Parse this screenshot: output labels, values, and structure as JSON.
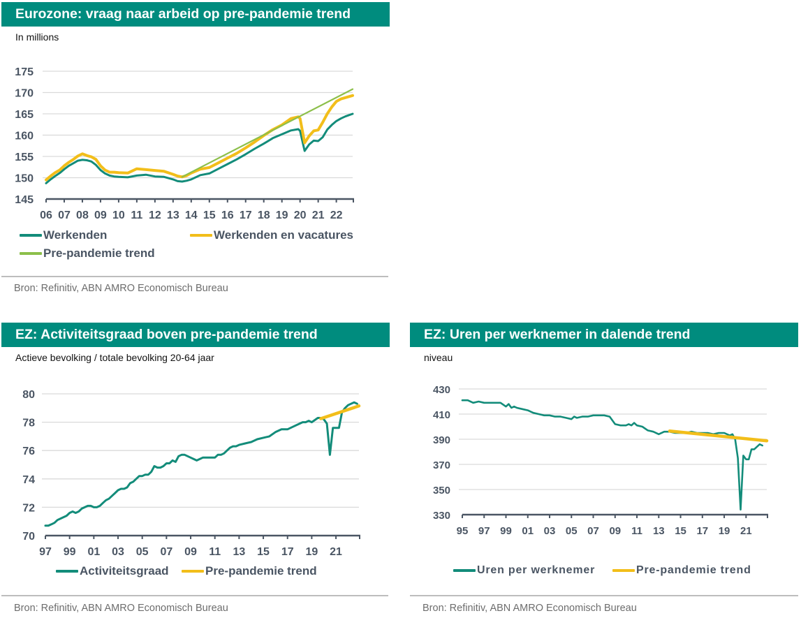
{
  "colors": {
    "header_bg": "#008c7e",
    "teal": "#138c7a",
    "gold": "#f2be1a",
    "green": "#8cbf4a",
    "axis": "#4a5563",
    "grid": "#d9d9d9"
  },
  "panels": [
    {
      "title": "Eurozone: vraag naar arbeid op pre-pandemie trend",
      "subtitle": "In millions",
      "source": "Bron: Refinitiv, ABN AMRO Economisch Bureau"
    },
    {
      "title": "EZ: Activiteitsgraad boven pre-pandemie trend",
      "subtitle": "Actieve bevolking / totale bevolking 20-64 jaar",
      "source": "Bron: Refinitiv, ABN AMRO Economisch Bureau"
    },
    {
      "title": "EZ: Uren per werknemer in dalende trend",
      "subtitle": "niveau",
      "source": "Bron: Refinitiv, ABN AMRO Economisch Bureau"
    }
  ],
  "chart_data": [
    {
      "type": "line",
      "title": "Eurozone: vraag naar arbeid op pre-pandemie trend",
      "subtitle": "In millions",
      "xlabel": "",
      "ylabel": "In millions",
      "xlim": [
        2006,
        2022.9
      ],
      "ylim": [
        145,
        175
      ],
      "yticks": [
        145,
        150,
        155,
        160,
        165,
        170,
        175
      ],
      "xticks": [
        2006,
        2007,
        2008,
        2009,
        2010,
        2011,
        2012,
        2013,
        2014,
        2015,
        2016,
        2017,
        2018,
        2019,
        2020,
        2021,
        2022
      ],
      "xtick_labels": [
        "06",
        "07",
        "08",
        "09",
        "10",
        "11",
        "12",
        "13",
        "14",
        "15",
        "16",
        "17",
        "18",
        "19",
        "20",
        "21",
        "22"
      ],
      "grid": true,
      "legend_position": "bottom",
      "series": [
        {
          "name": "Werkenden",
          "color": "#138c7a",
          "x": [
            2006.0,
            2006.25,
            2006.5,
            2006.75,
            2007.0,
            2007.25,
            2007.5,
            2007.75,
            2008.0,
            2008.25,
            2008.5,
            2008.75,
            2009.0,
            2009.25,
            2009.5,
            2009.75,
            2010.0,
            2010.5,
            2011.0,
            2011.5,
            2012.0,
            2012.5,
            2013.0,
            2013.25,
            2013.5,
            2013.75,
            2014.0,
            2014.5,
            2015.0,
            2015.5,
            2016.0,
            2016.5,
            2017.0,
            2017.5,
            2018.0,
            2018.5,
            2019.0,
            2019.5,
            2019.9,
            2020.0,
            2020.25,
            2020.5,
            2020.75,
            2021.0,
            2021.25,
            2021.5,
            2021.75,
            2022.0,
            2022.25,
            2022.5,
            2022.9
          ],
          "y": [
            148.7,
            149.6,
            150.4,
            151.1,
            152.0,
            152.8,
            153.4,
            154.0,
            154.2,
            154.1,
            153.8,
            153.0,
            151.8,
            151.0,
            150.5,
            150.3,
            150.2,
            150.1,
            150.5,
            150.7,
            150.3,
            150.2,
            149.6,
            149.2,
            149.1,
            149.3,
            149.6,
            150.6,
            151.0,
            152.1,
            153.2,
            154.3,
            155.5,
            156.8,
            158.0,
            159.3,
            160.2,
            161.1,
            161.4,
            161.0,
            156.3,
            157.8,
            158.7,
            158.6,
            159.5,
            161.3,
            162.4,
            163.3,
            163.9,
            164.4,
            165.0
          ]
        },
        {
          "name": "Werkenden en vacatures",
          "color": "#f2be1a",
          "x": [
            2006.0,
            2006.25,
            2006.5,
            2006.75,
            2007.0,
            2007.25,
            2007.5,
            2007.75,
            2008.0,
            2008.25,
            2008.5,
            2008.75,
            2009.0,
            2009.25,
            2009.5,
            2009.75,
            2010.0,
            2010.5,
            2011.0,
            2011.5,
            2012.0,
            2012.5,
            2013.0,
            2013.25,
            2013.5,
            2013.75,
            2014.0,
            2014.5,
            2015.0,
            2015.5,
            2016.0,
            2016.5,
            2017.0,
            2017.5,
            2018.0,
            2018.5,
            2019.0,
            2019.5,
            2019.9,
            2020.0,
            2020.25,
            2020.5,
            2020.75,
            2021.0,
            2021.25,
            2021.5,
            2021.75,
            2022.0,
            2022.25,
            2022.5,
            2022.9
          ],
          "y": [
            149.5,
            150.4,
            151.2,
            151.8,
            152.8,
            153.6,
            154.3,
            155.1,
            155.6,
            155.2,
            154.9,
            154.3,
            152.8,
            151.8,
            151.3,
            151.3,
            151.2,
            151.1,
            152.1,
            151.9,
            151.7,
            151.5,
            150.8,
            150.4,
            150.2,
            150.5,
            151.1,
            152.0,
            152.4,
            153.5,
            154.6,
            155.7,
            157.0,
            158.4,
            159.9,
            161.3,
            162.4,
            163.9,
            164.3,
            163.9,
            158.2,
            159.8,
            161.0,
            161.2,
            163.0,
            165.0,
            166.6,
            167.9,
            168.5,
            168.8,
            169.3
          ]
        },
        {
          "name": "Pre-pandemie trend",
          "color": "#8cbf4a",
          "x": [
            2013.5,
            2022.9
          ],
          "y": [
            150.2,
            170.8
          ]
        }
      ]
    },
    {
      "type": "line",
      "title": "EZ: Activiteitsgraad boven pre-pandemie trend",
      "subtitle": "Actieve bevolking / totale bevolking 20-64 jaar",
      "xlabel": "",
      "ylabel": "Actieve bevolking / totale bevolking 20-64 jaar",
      "xlim": [
        1997,
        2022.9
      ],
      "ylim": [
        70,
        80
      ],
      "yticks": [
        70,
        72,
        74,
        76,
        78,
        80
      ],
      "xticks": [
        1997,
        1999,
        2001,
        2003,
        2005,
        2007,
        2009,
        2011,
        2013,
        2015,
        2017,
        2019,
        2021
      ],
      "xtick_labels": [
        "97",
        "99",
        "01",
        "03",
        "05",
        "07",
        "09",
        "11",
        "13",
        "15",
        "17",
        "19",
        "21"
      ],
      "grid": true,
      "legend_position": "bottom",
      "series": [
        {
          "name": "Activiteitsgraad",
          "color": "#138c7a",
          "x": [
            1997.0,
            1997.25,
            1997.5,
            1997.75,
            1998.0,
            1998.25,
            1998.5,
            1998.75,
            1999.0,
            1999.25,
            1999.5,
            1999.75,
            2000.0,
            2000.25,
            2000.5,
            2000.75,
            2001.0,
            2001.25,
            2001.5,
            2001.75,
            2002.0,
            2002.25,
            2002.5,
            2002.75,
            2003.0,
            2003.25,
            2003.5,
            2003.75,
            2004.0,
            2004.25,
            2004.5,
            2004.75,
            2005.0,
            2005.25,
            2005.5,
            2005.75,
            2006.0,
            2006.25,
            2006.5,
            2006.75,
            2007.0,
            2007.25,
            2007.5,
            2007.75,
            2008.0,
            2008.25,
            2008.5,
            2008.75,
            2009.0,
            2009.25,
            2009.5,
            2009.75,
            2010.0,
            2010.5,
            2011.0,
            2011.25,
            2011.5,
            2011.75,
            2012.0,
            2012.25,
            2012.5,
            2012.75,
            2013.0,
            2013.5,
            2014.0,
            2014.5,
            2015.0,
            2015.5,
            2016.0,
            2016.5,
            2017.0,
            2017.5,
            2018.0,
            2018.25,
            2018.5,
            2018.75,
            2019.0,
            2019.5,
            2019.75,
            2020.0,
            2020.25,
            2020.5,
            2020.75,
            2021.0,
            2021.25,
            2021.5,
            2021.75,
            2022.0,
            2022.25,
            2022.5,
            2022.75
          ],
          "y": [
            70.7,
            70.7,
            70.8,
            70.9,
            71.1,
            71.2,
            71.3,
            71.4,
            71.6,
            71.7,
            71.6,
            71.7,
            71.9,
            72.0,
            72.1,
            72.1,
            72.0,
            72.0,
            72.1,
            72.3,
            72.5,
            72.6,
            72.8,
            73.0,
            73.2,
            73.3,
            73.3,
            73.4,
            73.7,
            73.8,
            74.0,
            74.2,
            74.2,
            74.3,
            74.3,
            74.5,
            74.9,
            74.8,
            74.8,
            74.9,
            75.1,
            75.1,
            75.3,
            75.2,
            75.6,
            75.7,
            75.7,
            75.6,
            75.5,
            75.4,
            75.3,
            75.4,
            75.5,
            75.5,
            75.5,
            75.7,
            75.7,
            75.8,
            76.0,
            76.2,
            76.3,
            76.3,
            76.4,
            76.5,
            76.6,
            76.8,
            76.9,
            77.0,
            77.3,
            77.5,
            77.5,
            77.7,
            77.9,
            78.0,
            78.0,
            78.1,
            78.0,
            78.3,
            78.3,
            78.2,
            77.9,
            75.7,
            77.6,
            77.6,
            77.6,
            78.7,
            79.0,
            79.2,
            79.3,
            79.4,
            79.3
          ]
        },
        {
          "name": "Pre-pandemie trend",
          "color": "#f2be1a",
          "x": [
            2019.75,
            2022.9
          ],
          "y": [
            78.25,
            79.15
          ]
        }
      ]
    },
    {
      "type": "line",
      "title": "EZ: Uren per werknemer in dalende trend",
      "subtitle": "niveau",
      "xlabel": "",
      "ylabel": "niveau",
      "xlim": [
        1995,
        2022.9
      ],
      "ylim": [
        330,
        430
      ],
      "yticks": [
        330,
        350,
        370,
        390,
        410,
        430
      ],
      "xticks": [
        1995,
        1997,
        1999,
        2001,
        2003,
        2005,
        2007,
        2009,
        2011,
        2013,
        2015,
        2017,
        2019,
        2021
      ],
      "xtick_labels": [
        "95",
        "97",
        "99",
        "01",
        "03",
        "05",
        "07",
        "09",
        "11",
        "13",
        "15",
        "17",
        "19",
        "21"
      ],
      "grid": true,
      "legend_position": "bottom",
      "series": [
        {
          "name": "Uren per werknemer",
          "color": "#138c7a",
          "x": [
            1995.0,
            1995.5,
            1996.0,
            1996.5,
            1997.0,
            1997.5,
            1998.0,
            1998.5,
            1999.0,
            1999.25,
            1999.5,
            1999.75,
            2000.0,
            2000.5,
            2001.0,
            2001.5,
            2002.0,
            2002.5,
            2003.0,
            2003.5,
            2004.0,
            2004.5,
            2005.0,
            2005.25,
            2005.5,
            2006.0,
            2006.5,
            2007.0,
            2007.5,
            2008.0,
            2008.5,
            2009.0,
            2009.5,
            2010.0,
            2010.25,
            2010.5,
            2010.75,
            2011.0,
            2011.5,
            2012.0,
            2012.5,
            2013.0,
            2013.5,
            2014.0,
            2014.5,
            2015.0,
            2015.5,
            2016.0,
            2016.5,
            2017.0,
            2017.5,
            2018.0,
            2018.5,
            2019.0,
            2019.5,
            2019.75,
            2020.0,
            2020.25,
            2020.5,
            2020.75,
            2021.0,
            2021.25,
            2021.5,
            2021.75,
            2022.0,
            2022.25,
            2022.5
          ],
          "y": [
            421,
            421,
            419,
            420,
            419,
            419,
            419,
            419,
            416,
            418,
            415,
            416,
            415,
            414,
            413,
            411,
            410,
            409,
            409,
            408,
            408,
            407,
            406,
            408,
            407,
            408,
            408,
            409,
            409,
            409,
            408,
            402,
            401,
            401,
            402,
            401,
            403,
            401,
            400,
            397,
            396,
            394,
            396,
            396,
            395,
            395,
            395,
            396,
            395,
            395,
            395,
            394,
            395,
            395,
            393,
            394,
            390,
            375,
            334,
            377,
            374,
            374,
            382,
            382,
            384,
            386,
            385
          ]
        },
        {
          "name": "Pre-pandemie trend",
          "color": "#f2be1a",
          "x": [
            2014.0,
            2022.9
          ],
          "y": [
            396.5,
            388.8
          ]
        }
      ]
    }
  ]
}
